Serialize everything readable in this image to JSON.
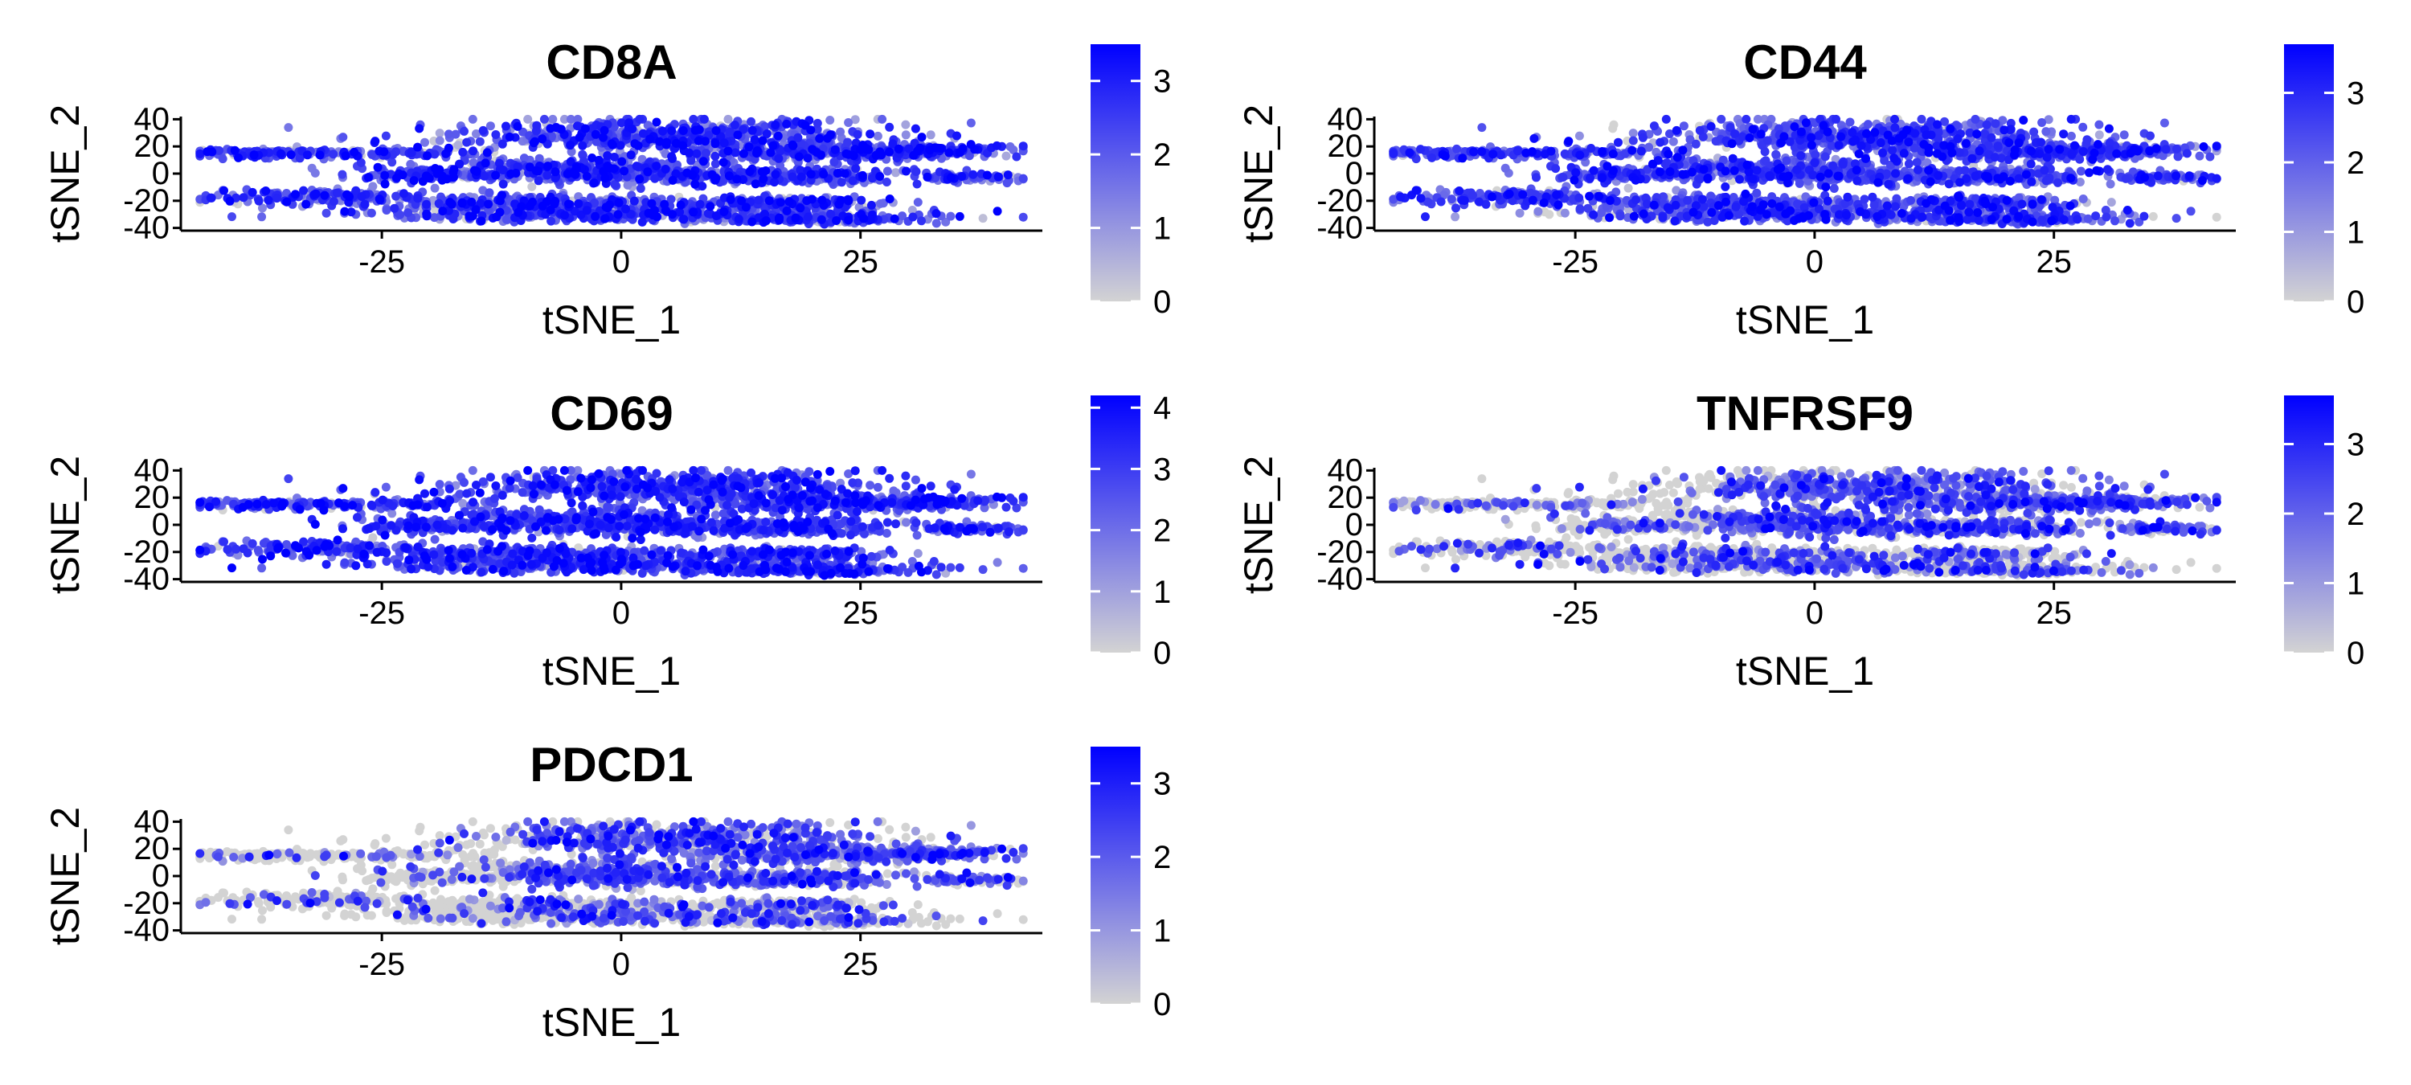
{
  "colors": {
    "low": "#d3d3d3",
    "high": "#0000ff"
  },
  "chart_data": [
    {
      "type": "scatter",
      "title": "CD8A",
      "xlabel": "tSNE_1",
      "ylabel": "tSNE_2",
      "xlim": [
        -46,
        44
      ],
      "ylim": [
        -42,
        42
      ],
      "xticks": [
        -25,
        0,
        25
      ],
      "xtick_labels": [
        "-25",
        "0",
        "25"
      ],
      "yticks": [
        40,
        20,
        0,
        -20,
        -40
      ],
      "ytick_labels": [
        "40",
        "20",
        "0",
        "-20",
        "-40"
      ],
      "color_scale": {
        "min": 0,
        "max": 3.5,
        "ticks": [
          0,
          1,
          2,
          3
        ],
        "tick_labels": [
          "0",
          "1",
          "2",
          "3"
        ]
      },
      "expression": {
        "mean": 2.2,
        "spread": 0.9,
        "zero_fraction": 0.03
      }
    },
    {
      "type": "scatter",
      "title": "CD44",
      "xlabel": "tSNE_1",
      "ylabel": "tSNE_2",
      "xlim": [
        -46,
        44
      ],
      "ylim": [
        -42,
        42
      ],
      "xticks": [
        -25,
        0,
        25
      ],
      "xtick_labels": [
        "-25",
        "0",
        "25"
      ],
      "yticks": [
        40,
        20,
        0,
        -20,
        -40
      ],
      "ytick_labels": [
        "40",
        "20",
        "0",
        "-20",
        "-40"
      ],
      "color_scale": {
        "min": 0,
        "max": 3.7,
        "ticks": [
          0,
          1,
          2,
          3
        ],
        "tick_labels": [
          "0",
          "1",
          "2",
          "3"
        ]
      },
      "expression": {
        "mean": 2.3,
        "spread": 0.8,
        "zero_fraction": 0.04
      }
    },
    {
      "type": "scatter",
      "title": "CD69",
      "xlabel": "tSNE_1",
      "ylabel": "tSNE_2",
      "xlim": [
        -46,
        44
      ],
      "ylim": [
        -42,
        42
      ],
      "xticks": [
        -25,
        0,
        25
      ],
      "xtick_labels": [
        "-25",
        "0",
        "25"
      ],
      "yticks": [
        40,
        20,
        0,
        -20,
        -40
      ],
      "ytick_labels": [
        "40",
        "20",
        "0",
        "-20",
        "-40"
      ],
      "color_scale": {
        "min": 0,
        "max": 4.2,
        "ticks": [
          0,
          1,
          2,
          3,
          4
        ],
        "tick_labels": [
          "0",
          "1",
          "2",
          "3",
          "4"
        ]
      },
      "expression": {
        "mean": 2.8,
        "spread": 0.9,
        "zero_fraction": 0.04
      }
    },
    {
      "type": "scatter",
      "title": "TNFRSF9",
      "xlabel": "tSNE_1",
      "ylabel": "tSNE_2",
      "xlim": [
        -46,
        44
      ],
      "ylim": [
        -42,
        42
      ],
      "xticks": [
        -25,
        0,
        25
      ],
      "xtick_labels": [
        "-25",
        "0",
        "25"
      ],
      "yticks": [
        40,
        20,
        0,
        -20,
        -40
      ],
      "ytick_labels": [
        "40",
        "20",
        "0",
        "-20",
        "-40"
      ],
      "color_scale": {
        "min": 0,
        "max": 3.7,
        "ticks": [
          0,
          1,
          2,
          3
        ],
        "tick_labels": [
          "0",
          "1",
          "2",
          "3"
        ]
      },
      "expression": {
        "mean": 2.1,
        "spread": 0.8,
        "zero_fraction": 0.45
      }
    },
    {
      "type": "scatter",
      "title": "PDCD1",
      "xlabel": "tSNE_1",
      "ylabel": "tSNE_2",
      "xlim": [
        -46,
        44
      ],
      "ylim": [
        -42,
        42
      ],
      "xticks": [
        -25,
        0,
        25
      ],
      "xtick_labels": [
        "-25",
        "0",
        "25"
      ],
      "yticks": [
        40,
        20,
        0,
        -20,
        -40
      ],
      "ytick_labels": [
        "40",
        "20",
        "0",
        "-20",
        "-40"
      ],
      "color_scale": {
        "min": 0,
        "max": 3.5,
        "ticks": [
          0,
          1,
          2,
          3
        ],
        "tick_labels": [
          "0",
          "1",
          "2",
          "3"
        ]
      },
      "expression": {
        "mean": 2.0,
        "spread": 0.8,
        "zero_fraction": 0.5
      }
    }
  ]
}
